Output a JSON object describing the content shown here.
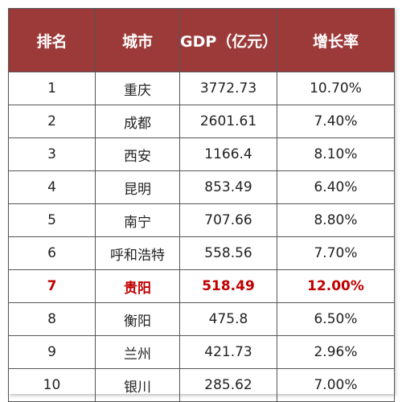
{
  "table": {
    "headers": [
      "排名",
      "城市",
      "GDP（亿元）",
      "增长率"
    ],
    "rows": [
      {
        "rank": "1",
        "city": "重庆",
        "gdp": "3772.73",
        "growth": "10.70%",
        "highlight": false
      },
      {
        "rank": "2",
        "city": "成都",
        "gdp": "2601.61",
        "growth": "7.40%",
        "highlight": false
      },
      {
        "rank": "3",
        "city": "西安",
        "gdp": "1166.4",
        "growth": "8.10%",
        "highlight": false
      },
      {
        "rank": "4",
        "city": "昆明",
        "gdp": "853.49",
        "growth": "6.40%",
        "highlight": false
      },
      {
        "rank": "5",
        "city": "南宁",
        "gdp": "707.66",
        "growth": "8.80%",
        "highlight": false
      },
      {
        "rank": "6",
        "city": "呼和浩特",
        "gdp": "558.56",
        "growth": "7.70%",
        "highlight": false
      },
      {
        "rank": "7",
        "city": "贵阳",
        "gdp": "518.49",
        "growth": "12.00%",
        "highlight": true
      },
      {
        "rank": "8",
        "city": "衡阳",
        "gdp": "475.8",
        "growth": "6.50%",
        "highlight": false
      },
      {
        "rank": "9",
        "city": "兰州",
        "gdp": "421.73",
        "growth": "2.96%",
        "highlight": false
      },
      {
        "rank": "10",
        "city": "银川",
        "gdp": "285.62",
        "growth": "7.00%",
        "highlight": false
      }
    ]
  },
  "colors": {
    "header_bg": "#9c3a3a",
    "header_text": "#ffffff",
    "highlight_text": "#c00000",
    "border": "#555555"
  }
}
